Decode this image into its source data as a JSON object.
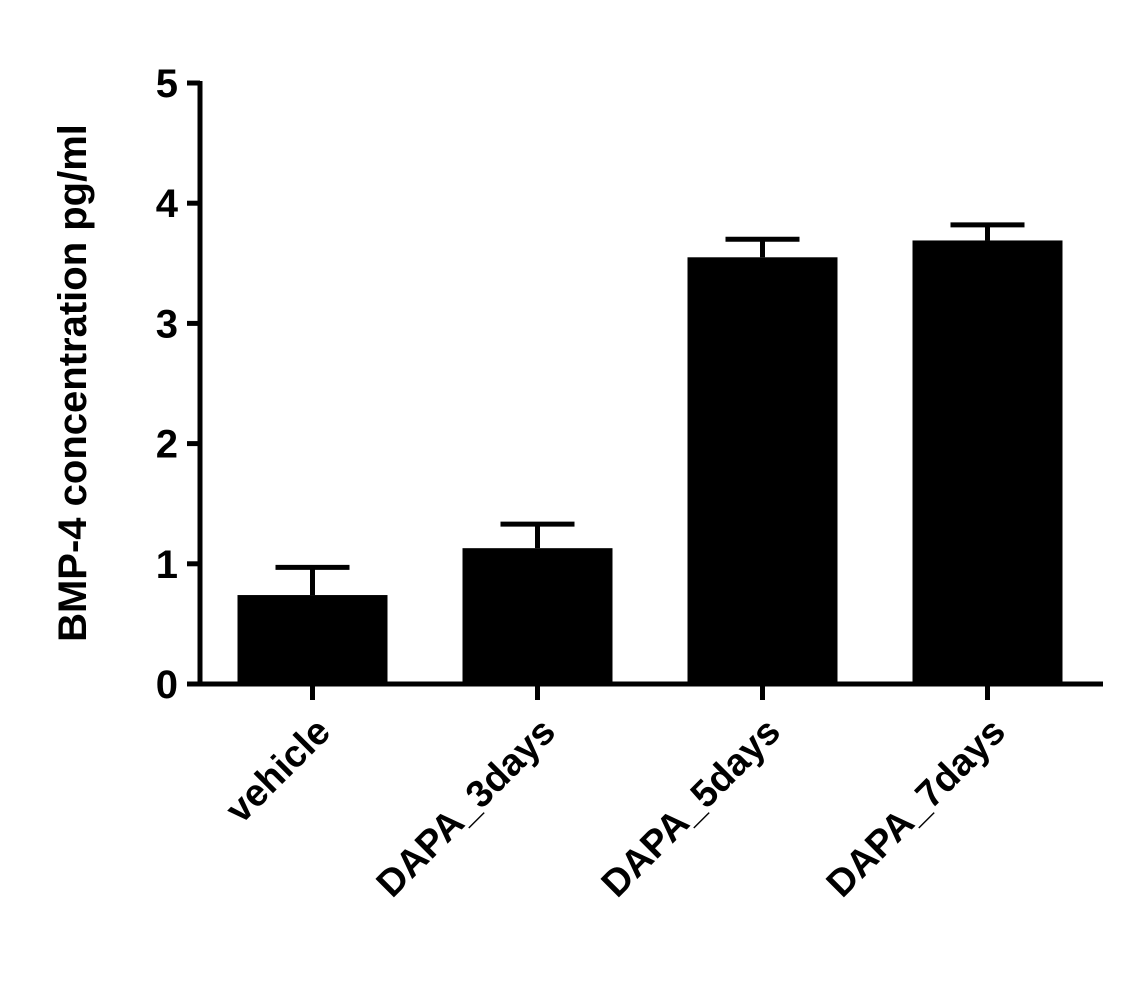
{
  "chart_data": {
    "type": "bar",
    "y_label": "BMP-4 concentration pg/ml",
    "categories": [
      "vehicle",
      "DAPA_3days",
      "DAPA_5days",
      "DAPA_7days"
    ],
    "values": [
      0.74,
      1.13,
      3.55,
      3.69
    ],
    "errors": [
      0.23,
      0.2,
      0.15,
      0.13
    ],
    "color": "#000000",
    "ylim": [
      0,
      5
    ],
    "yticks": [
      0,
      1,
      2,
      3,
      4,
      5
    ],
    "grid": false
  }
}
